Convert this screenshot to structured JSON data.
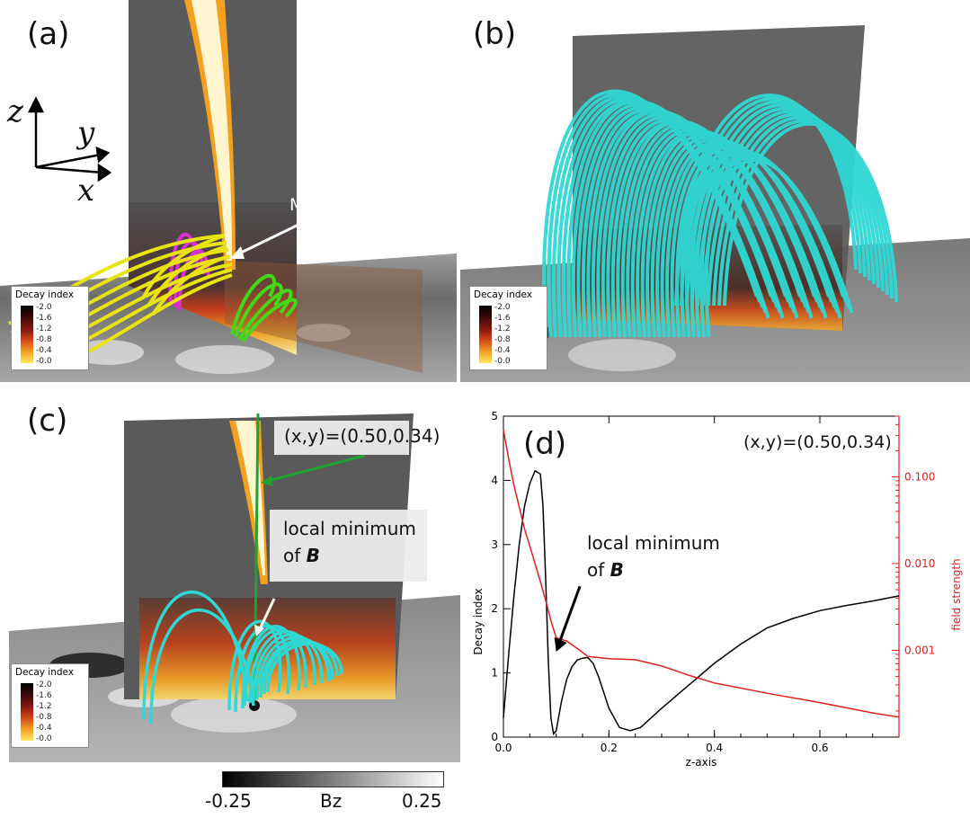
{
  "panels": {
    "a": {
      "label": "(a)",
      "annotation": "MFR",
      "axes": {
        "z": "z",
        "y": "y",
        "x": "x"
      }
    },
    "b": {
      "label": "(b)"
    },
    "c": {
      "label": "(c)",
      "coord": "(x,y)=(0.50,0.34)",
      "min_line1": "local minimum",
      "min_line2": "of ",
      "min_bold": "B"
    },
    "d": {
      "label": "(d)",
      "coord": "(x,y)=(0.50,0.34)",
      "min_line1": "local minimum",
      "min_line2": "of ",
      "min_bold": "B"
    }
  },
  "legend": {
    "title": "Decay index",
    "ticks": [
      "-2.0",
      "-1.6",
      "-1.2",
      "-0.8",
      "-0.4",
      "-0.0"
    ]
  },
  "colorbar": {
    "min": "-0.25",
    "label": "Bz",
    "max": "0.25"
  },
  "colors": {
    "decay_curve": "#000000",
    "field_curve": "#e0201c",
    "cyan_lines": "#2fd8d4",
    "yellow_lines": "#e8e410",
    "magenta_lines": "#d830d0",
    "green_lines": "#40d818",
    "arrow_green": "#22a030"
  },
  "chart_data": {
    "type": "line",
    "title": "",
    "xlabel": "z-axis",
    "ylabel": "Decay index",
    "y2label": "field strength",
    "xlim": [
      0.0,
      0.75
    ],
    "ylim": [
      0,
      5
    ],
    "y2lim": [
      0.0001,
      0.5
    ],
    "y2scale": "log",
    "x_ticks": [
      "0.0",
      "0.2",
      "0.4",
      "0.6"
    ],
    "y_ticks": [
      "0",
      "1",
      "2",
      "3",
      "4",
      "5"
    ],
    "y2_ticks": [
      "0.001",
      "0.010",
      "0.100"
    ],
    "series": [
      {
        "name": "Decay index",
        "axis": "left",
        "x": [
          0.0,
          0.01,
          0.02,
          0.03,
          0.04,
          0.05,
          0.06,
          0.07,
          0.075,
          0.08,
          0.085,
          0.09,
          0.095,
          0.1,
          0.11,
          0.12,
          0.13,
          0.14,
          0.15,
          0.16,
          0.17,
          0.18,
          0.19,
          0.2,
          0.22,
          0.24,
          0.26,
          0.28,
          0.3,
          0.35,
          0.4,
          0.45,
          0.5,
          0.55,
          0.6,
          0.65,
          0.7,
          0.75
        ],
        "y": [
          0.3,
          1.3,
          2.2,
          3.0,
          3.6,
          3.95,
          4.15,
          4.1,
          3.6,
          2.5,
          1.2,
          0.3,
          0.05,
          0.1,
          0.55,
          0.9,
          1.1,
          1.2,
          1.23,
          1.24,
          1.15,
          0.95,
          0.7,
          0.45,
          0.15,
          0.1,
          0.15,
          0.3,
          0.45,
          0.8,
          1.15,
          1.45,
          1.7,
          1.85,
          1.97,
          2.05,
          2.12,
          2.2
        ]
      },
      {
        "name": "field strength",
        "axis": "right",
        "x": [
          0.0,
          0.01,
          0.02,
          0.03,
          0.04,
          0.05,
          0.06,
          0.07,
          0.08,
          0.09,
          0.1,
          0.12,
          0.14,
          0.16,
          0.2,
          0.25,
          0.3,
          0.35,
          0.4,
          0.5,
          0.6,
          0.7,
          0.75
        ],
        "y": [
          0.35,
          0.16,
          0.08,
          0.045,
          0.025,
          0.016,
          0.01,
          0.0062,
          0.0038,
          0.0022,
          0.0014,
          0.00128,
          0.00105,
          0.00085,
          0.0008,
          0.00078,
          0.00066,
          0.00052,
          0.00042,
          0.00032,
          0.00025,
          0.00019,
          0.00017
        ]
      }
    ],
    "annotations": [
      "(x,y)=(0.50,0.34)",
      "local minimum of B"
    ]
  }
}
